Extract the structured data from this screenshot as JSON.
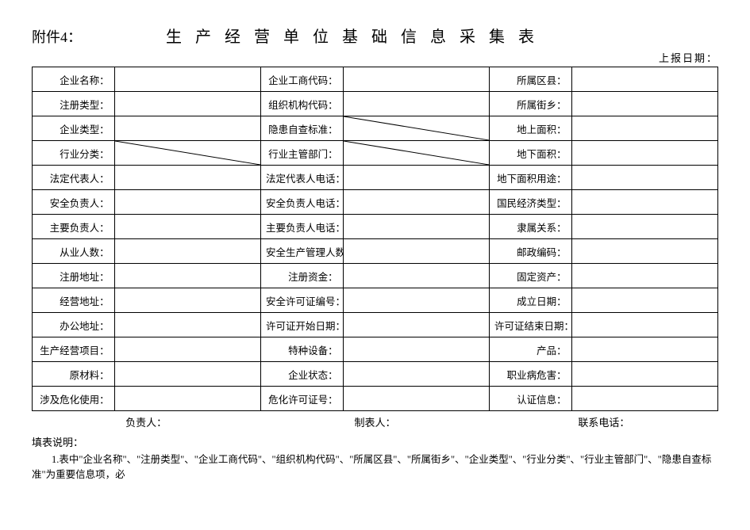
{
  "attachment": "附件4：",
  "title": "生 产 经 营 单 位 基 础 信 息 采 集 表",
  "report_date_label": "上报日期：",
  "rows": [
    {
      "c1": "企业名称：",
      "c2": "企业工商代码：",
      "c3": "所属区县："
    },
    {
      "c1": "注册类型：",
      "c2": "组织机构代码：",
      "c3": "所属街乡："
    },
    {
      "c1": "企业类型：",
      "c2": "隐患自查标准：",
      "c3": "地上面积：",
      "diag2": true
    },
    {
      "c1": "行业分类：",
      "c2": "行业主管部门：",
      "c3": "地下面积：",
      "diag1": true,
      "diag2b": true
    },
    {
      "c1": "法定代表人：",
      "c2": "法定代表人电话：",
      "c3": "地下面积用途："
    },
    {
      "c1": "安全负责人：",
      "c2": "安全负责人电话：",
      "c3": "国民经济类型："
    },
    {
      "c1": "主要负责人：",
      "c2": "主要负责人电话：",
      "c3": "隶属关系："
    },
    {
      "c1": "从业人数：",
      "c2": "安全生产管理人数：",
      "c3": "邮政编码："
    },
    {
      "c1": "注册地址：",
      "c2": "注册资金：",
      "c3": "固定资产："
    },
    {
      "c1": "经营地址：",
      "c2": "安全许可证编号：",
      "c3": "成立日期："
    },
    {
      "c1": "办公地址：",
      "c2": "许可证开始日期：",
      "c3": "许可证结束日期："
    },
    {
      "c1": "生产经营项目：",
      "c2": "特种设备：",
      "c3": "产品："
    },
    {
      "c1": "原材料：",
      "c2": "企业状态：",
      "c3": "职业病危害："
    },
    {
      "c1": "涉及危化使用：",
      "c2": "危化许可证号：",
      "c3": "认证信息："
    }
  ],
  "footer": {
    "responsible": "负责人：",
    "preparer": "制表人：",
    "contact": "联系电话："
  },
  "notes_heading": "填表说明：",
  "note1": "1.表中\"企业名称\"、\"注册类型\"、\"企业工商代码\"、\"组织机构代码\"、\"所属区县\"、\"所属街乡\"、\"企业类型\"、\"行业分类\"、\"行业主管部门\"、\"隐患自查标准\"为重要信息项，必",
  "colwidths": {
    "label": "12%",
    "value": "21.33%"
  },
  "colors": {
    "border": "#000000",
    "text": "#000000",
    "bg": "#ffffff"
  }
}
